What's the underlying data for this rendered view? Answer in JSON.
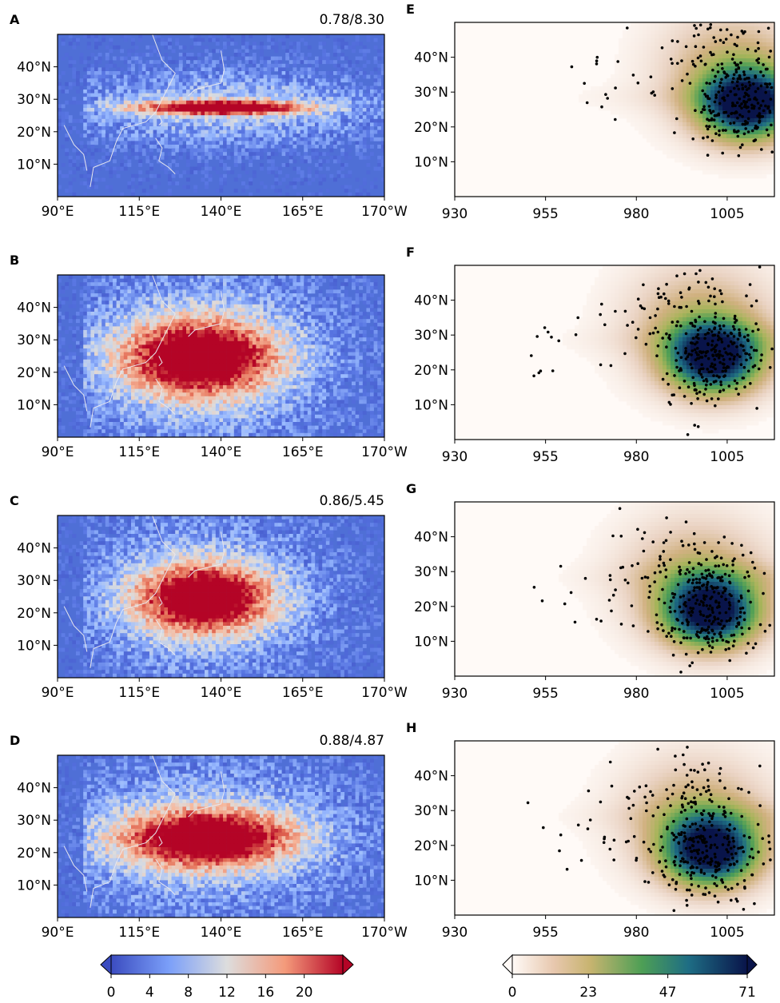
{
  "figure": {
    "left_panels": [
      {
        "letter": "A",
        "score": "0.78/8.30"
      },
      {
        "letter": "B",
        "score": ""
      },
      {
        "letter": "C",
        "score": "0.86/5.45"
      },
      {
        "letter": "D",
        "score": "0.88/4.87"
      }
    ],
    "right_panels": [
      {
        "letter": "E"
      },
      {
        "letter": "F"
      },
      {
        "letter": "G"
      },
      {
        "letter": "H"
      }
    ],
    "left_colorbar": {
      "ticks": [
        "0",
        "4",
        "8",
        "12",
        "16",
        "20"
      ],
      "min": 0,
      "max": 24
    },
    "right_colorbar": {
      "ticks": [
        "0",
        "23",
        "47",
        "71"
      ],
      "min": 0,
      "max": 71
    }
  },
  "chart_data": [
    {
      "type": "heatmap",
      "panel": "A",
      "title": "0.78/8.30",
      "x_ticks": [
        "90°E",
        "115°E",
        "140°E",
        "165°E",
        "170°W"
      ],
      "y_ticks": [
        "10°N",
        "20°N",
        "30°N",
        "40°N"
      ],
      "xlim": [
        90,
        190
      ],
      "ylim": [
        0,
        50
      ],
      "hotspots": [
        {
          "lon": 140,
          "lat": 28,
          "intensity": 24,
          "spread_lon": 18,
          "spread_lat": 1.5
        }
      ]
    },
    {
      "type": "heatmap",
      "panel": "B",
      "title": "",
      "x_ticks": [
        "90°E",
        "115°E",
        "140°E",
        "165°E",
        "170°W"
      ],
      "y_ticks": [
        "10°N",
        "20°N",
        "30°N",
        "40°N"
      ],
      "xlim": [
        90,
        190
      ],
      "ylim": [
        0,
        50
      ],
      "hotspots": [
        {
          "lon": 133,
          "lat": 25,
          "intensity": 24,
          "spread_lon": 16,
          "spread_lat": 8
        }
      ]
    },
    {
      "type": "heatmap",
      "panel": "C",
      "title": "0.86/5.45",
      "x_ticks": [
        "90°E",
        "115°E",
        "140°E",
        "165°E",
        "170°W"
      ],
      "y_ticks": [
        "10°N",
        "20°N",
        "30°N",
        "40°N"
      ],
      "xlim": [
        90,
        190
      ],
      "ylim": [
        0,
        50
      ],
      "hotspots": [
        {
          "lon": 134,
          "lat": 25,
          "intensity": 24,
          "spread_lon": 14,
          "spread_lat": 7
        }
      ]
    },
    {
      "type": "heatmap",
      "panel": "D",
      "title": "0.88/4.87",
      "x_ticks": [
        "90°E",
        "115°E",
        "140°E",
        "165°E",
        "170°W"
      ],
      "y_ticks": [
        "10°N",
        "20°N",
        "30°N",
        "40°N"
      ],
      "xlim": [
        90,
        190
      ],
      "ylim": [
        0,
        50
      ],
      "hotspots": [
        {
          "lon": 135,
          "lat": 25,
          "intensity": 24,
          "spread_lon": 18,
          "spread_lat": 6
        }
      ]
    },
    {
      "type": "scatter",
      "panel": "E",
      "x_ticks": [
        "930",
        "955",
        "980",
        "1005"
      ],
      "y_ticks": [
        "10°N",
        "20°N",
        "30°N",
        "40°N"
      ],
      "xlim": [
        930,
        1018
      ],
      "ylim": [
        0,
        50
      ],
      "density_peak": {
        "pressure": 1010,
        "lat": 27,
        "value": 71
      }
    },
    {
      "type": "scatter",
      "panel": "F",
      "x_ticks": [
        "930",
        "955",
        "980",
        "1005"
      ],
      "y_ticks": [
        "10°N",
        "20°N",
        "30°N",
        "40°N"
      ],
      "xlim": [
        930,
        1018
      ],
      "ylim": [
        0,
        50
      ],
      "density_peak": {
        "pressure": 1001,
        "lat": 24,
        "value": 71
      }
    },
    {
      "type": "scatter",
      "panel": "G",
      "x_ticks": [
        "930",
        "955",
        "980",
        "1005"
      ],
      "y_ticks": [
        "10°N",
        "20°N",
        "30°N",
        "40°N"
      ],
      "xlim": [
        930,
        1018
      ],
      "ylim": [
        0,
        50
      ],
      "density_peak": {
        "pressure": 1000,
        "lat": 19,
        "value": 71
      }
    },
    {
      "type": "scatter",
      "panel": "H",
      "x_ticks": [
        "930",
        "955",
        "980",
        "1005"
      ],
      "y_ticks": [
        "10°N",
        "20°N",
        "30°N",
        "40°N"
      ],
      "xlim": [
        930,
        1018
      ],
      "ylim": [
        0,
        50
      ],
      "density_peak": {
        "pressure": 1000,
        "lat": 19,
        "value": 71
      }
    }
  ]
}
